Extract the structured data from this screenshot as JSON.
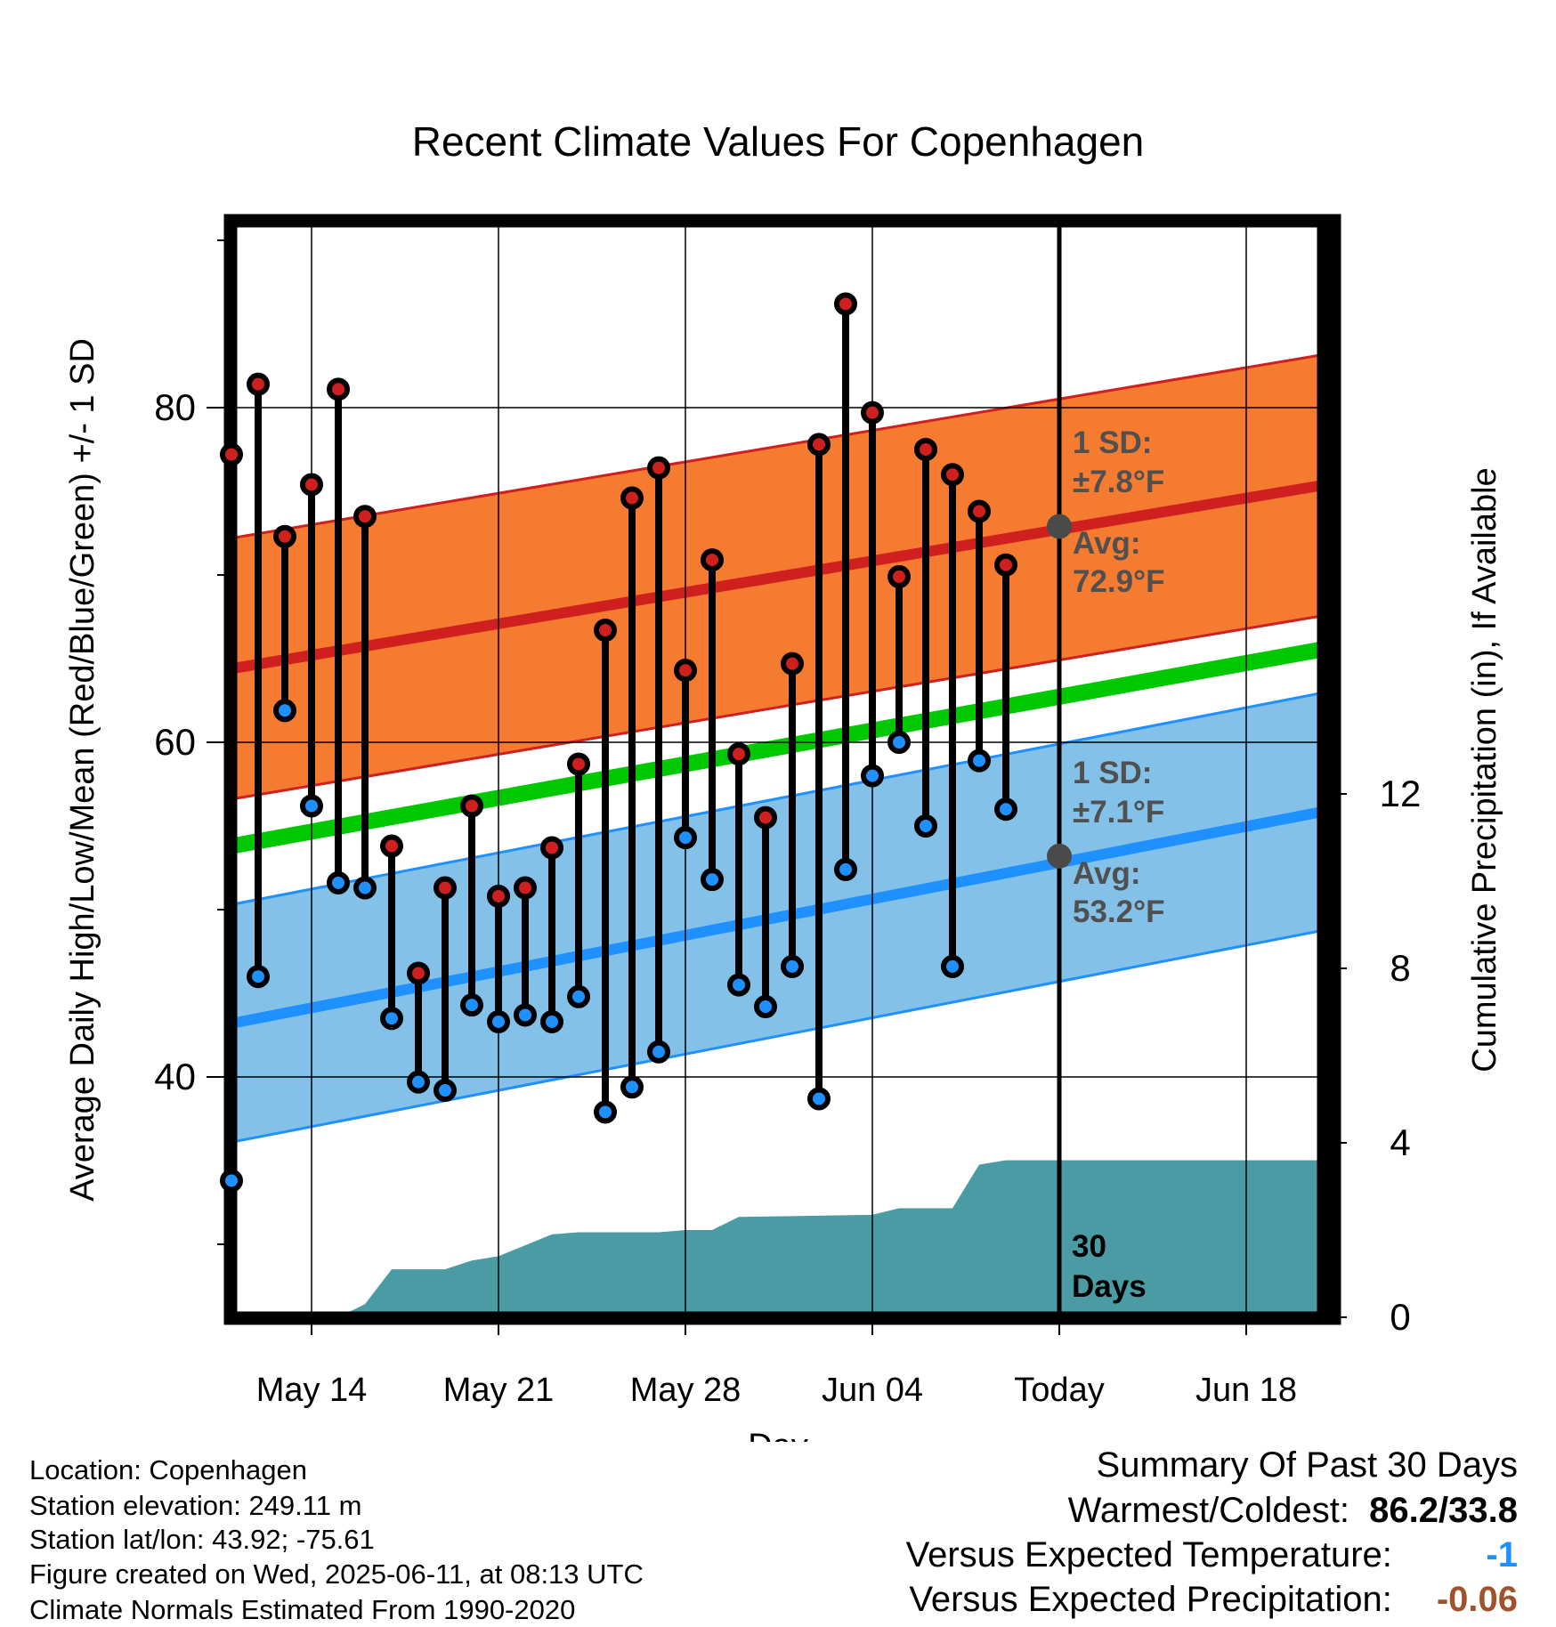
{
  "title": "Recent Climate Values For Copenhagen",
  "colors": {
    "high": "#d01f1f",
    "low": "#1e90ff",
    "mean": "#00c800",
    "high_band": "#f47b30",
    "low_band": "#83c1e8",
    "precip": "#4a9ba4",
    "avg_marker": "#4a4a4a",
    "annotation_text": "#505050",
    "temp_anomaly": "#1e90ff",
    "precip_anomaly": "#a0522d"
  },
  "chart_data": {
    "type": "line",
    "title": "Recent Climate Values For Copenhagen",
    "xlabel": "Day",
    "ylabel": "Average Daily High/Low/Mean (Red/Blue/Green) +/- 1 SD",
    "y2label": "Cumulative Precipitation (in), If Available",
    "x_tick_labels": [
      "May 14",
      "May 21",
      "May 28",
      "Jun 04",
      "Today",
      "Jun 18"
    ],
    "x_tick_days": [
      "May 14",
      "May 21",
      "May 28",
      "Jun 04",
      "Jun 11",
      "Jun 18"
    ],
    "x_range": [
      "May 10.7",
      "Jun 21.7"
    ],
    "ylim": [
      27,
      92
    ],
    "y_ticks": [
      40,
      60,
      80
    ],
    "y2lim": [
      0,
      30
    ],
    "y2_ticks": [
      0,
      4,
      8,
      12
    ],
    "grid": true,
    "daily": [
      {
        "date": "May 11",
        "high": 77.2,
        "low": 33.8
      },
      {
        "date": "May 12",
        "high": 81.4,
        "low": 46.0
      },
      {
        "date": "May 13",
        "high": 72.3,
        "low": 61.9
      },
      {
        "date": "May 14",
        "high": 75.4,
        "low": 56.2
      },
      {
        "date": "May 15",
        "high": 81.1,
        "low": 51.6
      },
      {
        "date": "May 16",
        "high": 73.5,
        "low": 51.3
      },
      {
        "date": "May 17",
        "high": 53.8,
        "low": 43.5
      },
      {
        "date": "May 18",
        "high": 46.2,
        "low": 39.7
      },
      {
        "date": "May 19",
        "high": 51.3,
        "low": 39.2
      },
      {
        "date": "May 20",
        "high": 56.2,
        "low": 44.3
      },
      {
        "date": "May 21",
        "high": 50.8,
        "low": 43.3
      },
      {
        "date": "May 22",
        "high": 51.3,
        "low": 43.7
      },
      {
        "date": "May 23",
        "high": 53.7,
        "low": 43.3
      },
      {
        "date": "May 24",
        "high": 58.7,
        "low": 44.8
      },
      {
        "date": "May 25",
        "high": 66.7,
        "low": 37.9
      },
      {
        "date": "May 26",
        "high": 74.6,
        "low": 39.4
      },
      {
        "date": "May 27",
        "high": 76.4,
        "low": 41.5
      },
      {
        "date": "May 28",
        "high": 64.3,
        "low": 54.3
      },
      {
        "date": "May 29",
        "high": 70.9,
        "low": 51.8
      },
      {
        "date": "May 30",
        "high": 59.3,
        "low": 45.5
      },
      {
        "date": "May 31",
        "high": 55.5,
        "low": 44.2
      },
      {
        "date": "Jun 01",
        "high": 64.7,
        "low": 46.6
      },
      {
        "date": "Jun 02",
        "high": 77.8,
        "low": 38.7
      },
      {
        "date": "Jun 03",
        "high": 86.2,
        "low": 52.4
      },
      {
        "date": "Jun 04",
        "high": 79.7,
        "low": 58.0
      },
      {
        "date": "Jun 05",
        "high": 69.9,
        "low": 60.0
      },
      {
        "date": "Jun 06",
        "high": 77.5,
        "low": 55.0
      },
      {
        "date": "Jun 07",
        "high": 76.0,
        "low": 46.6
      },
      {
        "date": "Jun 08",
        "high": 73.8,
        "low": 58.9
      },
      {
        "date": "Jun 09",
        "high": 70.6,
        "low": 56.0
      }
    ],
    "normals": {
      "dates": [
        "May 11",
        "Jun 21"
      ],
      "high_mean": [
        64.4,
        75.4
      ],
      "high_sd": 7.8,
      "low_mean": [
        43.2,
        55.9
      ],
      "low_sd": 7.1,
      "mean": [
        53.8,
        65.6
      ]
    },
    "precip_cumulative": [
      {
        "date": "May 11",
        "value": 0
      },
      {
        "date": "May 15",
        "value": 0
      },
      {
        "date": "May 16",
        "value": 0.3
      },
      {
        "date": "May 17",
        "value": 1.1
      },
      {
        "date": "May 19",
        "value": 1.1
      },
      {
        "date": "May 20",
        "value": 1.3
      },
      {
        "date": "May 21",
        "value": 1.4
      },
      {
        "date": "May 23",
        "value": 1.9
      },
      {
        "date": "May 24",
        "value": 1.95
      },
      {
        "date": "May 27",
        "value": 1.95
      },
      {
        "date": "May 28",
        "value": 2.0
      },
      {
        "date": "May 29",
        "value": 2.0
      },
      {
        "date": "May 30",
        "value": 2.3
      },
      {
        "date": "Jun 04",
        "value": 2.35
      },
      {
        "date": "Jun 05",
        "value": 2.5
      },
      {
        "date": "Jun 07",
        "value": 2.5
      },
      {
        "date": "Jun 08",
        "value": 3.5
      },
      {
        "date": "Jun 09",
        "value": 3.6
      },
      {
        "date": "Jun 21",
        "value": 3.6
      }
    ],
    "annotations": {
      "high_sd_label": "1 SD:",
      "high_sd_value": "±7.8°F",
      "high_avg_label": "Avg:",
      "high_avg_value": "72.9°F",
      "high_avg": 72.9,
      "low_sd_label": "1 SD:",
      "low_sd_value": "±7.1°F",
      "low_avg_label": "Avg:",
      "low_avg_value": "53.2°F",
      "low_avg": 53.2,
      "period_line1": "30",
      "period_line2": "Days"
    }
  },
  "footer": {
    "location": "Location: Copenhagen",
    "elevation": "Station elevation: 249.11 m",
    "latlon": "Station lat/lon: 43.92; -75.61",
    "created": "Figure created on Wed, 2025-06-11, at 08:13 UTC",
    "normals": "Climate Normals Estimated From 1990-2020"
  },
  "summary": {
    "heading": "Summary Of Past 30 Days",
    "warmest_coldest_label": "Warmest/Coldest:",
    "warmest_coldest_value": "86.2/33.8",
    "temp_label": "Versus Expected Temperature:",
    "temp_value": "-1",
    "precip_label": "Versus Expected Precipitation:",
    "precip_value": "-0.06"
  }
}
